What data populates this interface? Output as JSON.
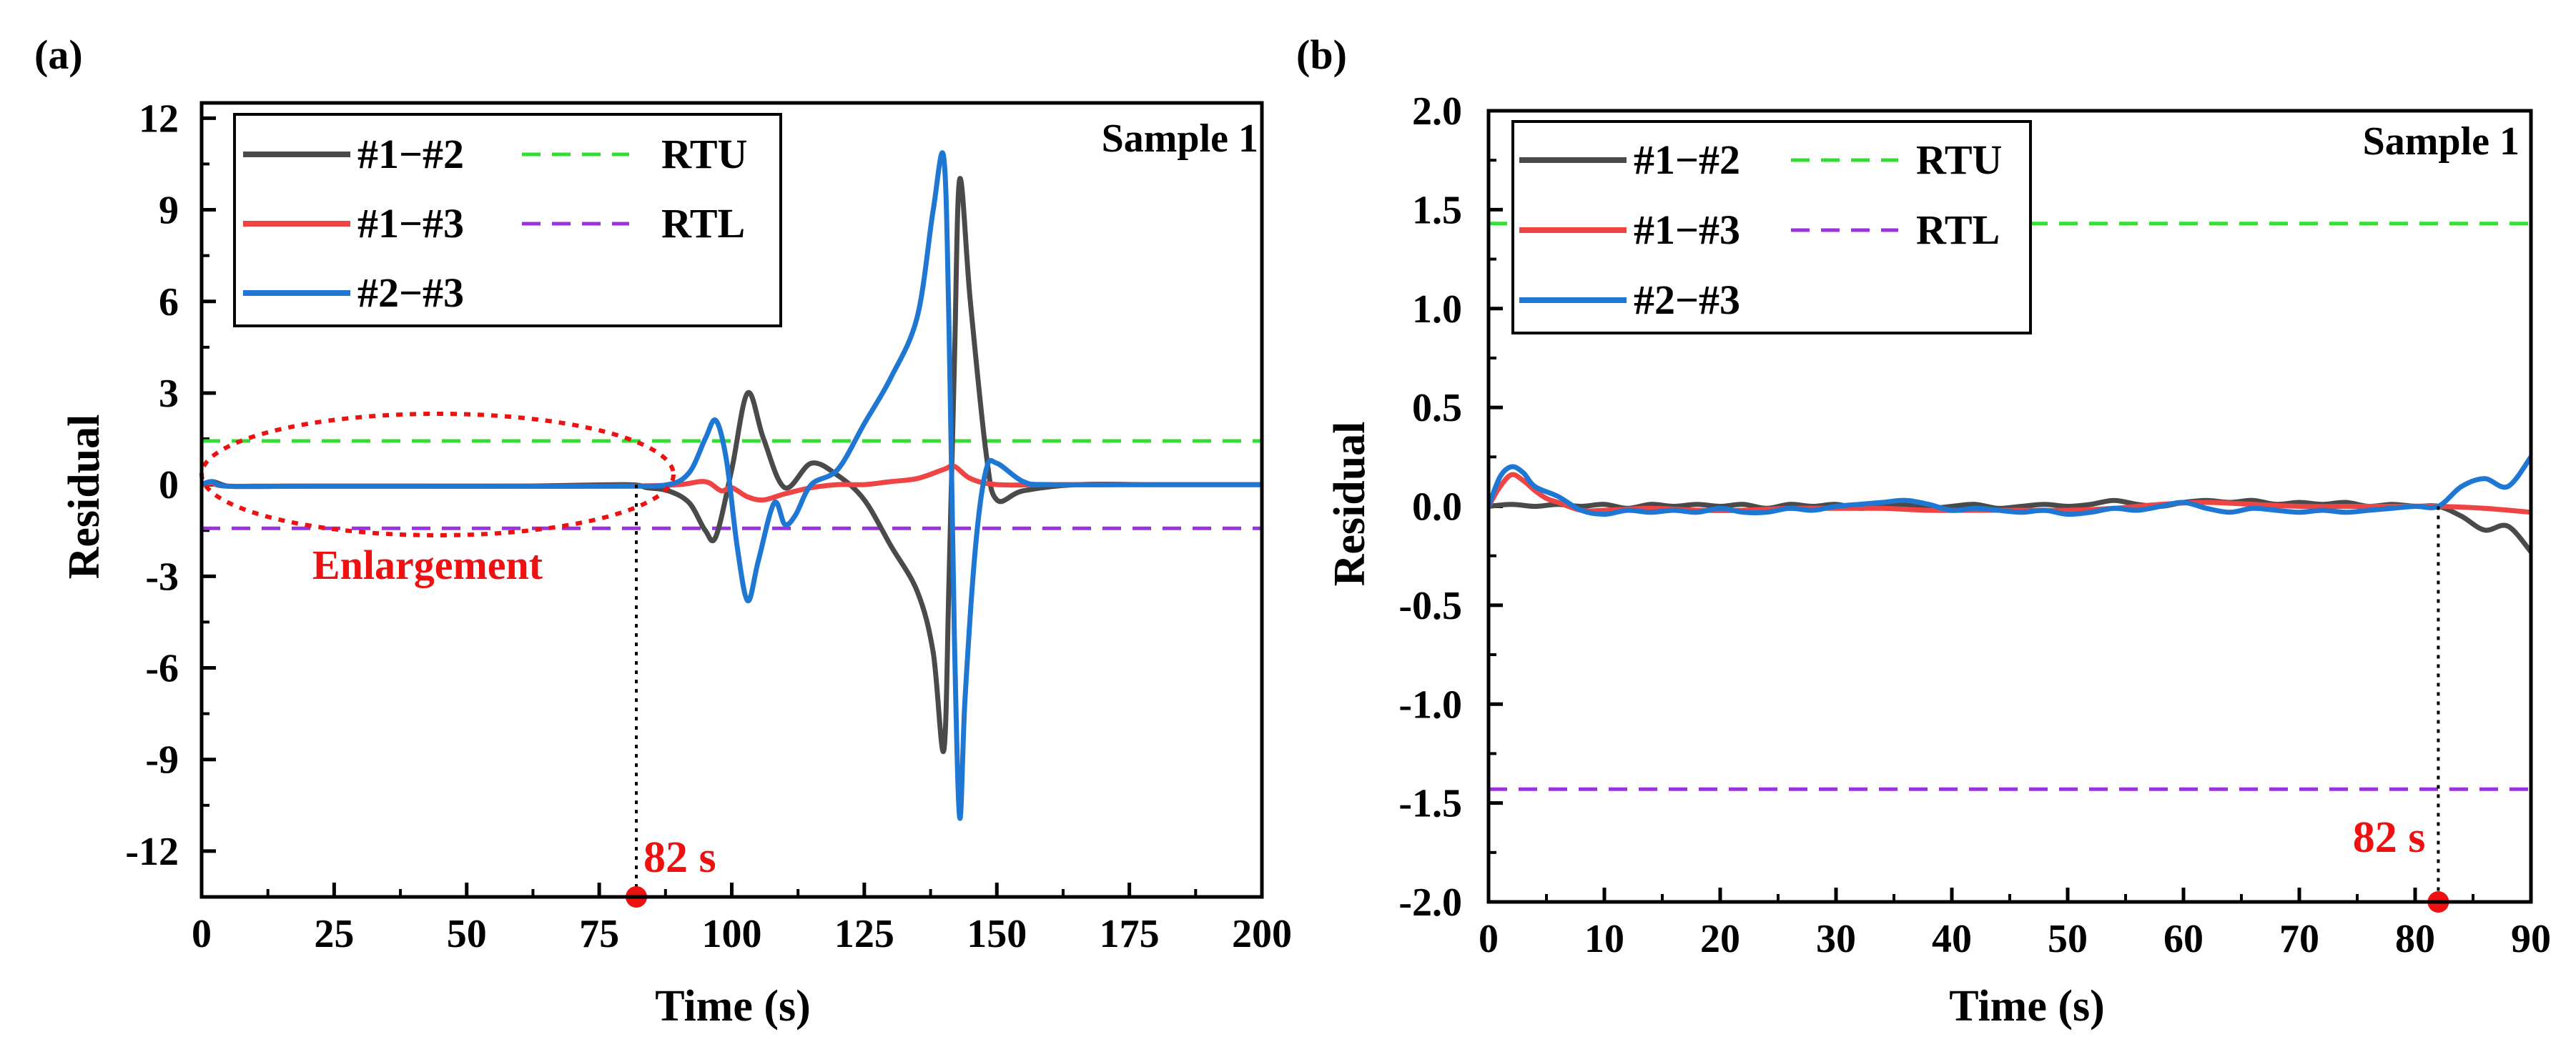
{
  "panels": [
    {
      "id": "a",
      "label": "(a)",
      "sample_label": "Sample 1",
      "annotation_text": "Enlargement",
      "marker_label": "82 s",
      "legend": [
        {
          "label": "#1−#2",
          "color": "#4a4a4a",
          "style": "solid"
        },
        {
          "label": "RTU",
          "color": "#33dd33",
          "style": "dashed"
        },
        {
          "label": "#1−#3",
          "color": "#ef4444",
          "style": "solid"
        },
        {
          "label": "RTL",
          "color": "#9a33dd",
          "style": "dashed"
        },
        {
          "label": "#2−#3",
          "color": "#1f77d4",
          "style": "solid"
        }
      ]
    },
    {
      "id": "b",
      "label": "(b)",
      "sample_label": "Sample 1",
      "marker_label": "82 s",
      "legend": [
        {
          "label": "#1−#2",
          "color": "#4a4a4a",
          "style": "solid"
        },
        {
          "label": "RTU",
          "color": "#33dd33",
          "style": "dashed"
        },
        {
          "label": "#1−#3",
          "color": "#ef4444",
          "style": "solid"
        },
        {
          "label": "RTL",
          "color": "#9a33dd",
          "style": "dashed"
        },
        {
          "label": "#2−#3",
          "color": "#1f77d4",
          "style": "solid"
        }
      ]
    }
  ],
  "chart_data": [
    {
      "type": "line",
      "xlabel": "Time (s)",
      "ylabel": "Residual",
      "xlim": [
        0,
        200
      ],
      "ylim": [
        -13.5,
        12.5
      ],
      "xticks": [
        0,
        25,
        50,
        75,
        100,
        125,
        150,
        175,
        200
      ],
      "xtick_labels": [
        "0",
        "25",
        "50",
        "75",
        "100",
        "125",
        "150",
        "175",
        "200"
      ],
      "yticks": [
        12,
        9,
        6,
        3,
        0,
        -3,
        -6,
        -9,
        -12
      ],
      "ytick_labels": [
        "12",
        "9",
        "6",
        "3",
        "0",
        "-3",
        "-6",
        "-9",
        "-12"
      ],
      "thresholds": {
        "RTU": 1.43,
        "RTL": -1.43
      },
      "marker_x": 82,
      "series": [
        {
          "name": "#1−#2",
          "color": "#4a4a4a",
          "x": [
            0,
            2,
            5,
            10,
            20,
            40,
            60,
            80,
            84,
            88,
            92,
            95,
            97,
            100,
            103,
            106,
            110,
            115,
            120,
            125,
            130,
            135,
            138,
            140,
            141,
            142,
            143,
            145,
            148,
            150,
            155,
            165,
            180,
            200
          ],
          "y": [
            0,
            0.1,
            -0.05,
            -0.05,
            -0.05,
            -0.05,
            -0.05,
            0,
            -0.1,
            -0.2,
            -0.6,
            -1.5,
            -1.7,
            0.5,
            3.0,
            1.5,
            -0.1,
            0.7,
            0.3,
            -0.5,
            -2.0,
            -3.5,
            -5.5,
            -8.7,
            -3,
            4,
            10.0,
            6,
            1,
            -0.5,
            -0.2,
            0,
            0,
            0
          ]
        },
        {
          "name": "#1−#3",
          "color": "#ef4444",
          "x": [
            0,
            2,
            5,
            20,
            40,
            60,
            80,
            90,
            95,
            98,
            100,
            103,
            106,
            110,
            115,
            120,
            125,
            130,
            135,
            140,
            142,
            145,
            150,
            160,
            180,
            200
          ],
          "y": [
            0,
            0.05,
            -0.05,
            -0.05,
            -0.05,
            -0.05,
            -0.05,
            0,
            0.1,
            -0.2,
            -0.1,
            -0.4,
            -0.5,
            -0.3,
            -0.1,
            0,
            0,
            0.1,
            0.2,
            0.5,
            0.6,
            0.2,
            0,
            0,
            0,
            0
          ]
        },
        {
          "name": "#2−#3",
          "color": "#1f77d4",
          "x": [
            0,
            2,
            5,
            20,
            40,
            60,
            80,
            88,
            92,
            95,
            97,
            99,
            101,
            103,
            105,
            108,
            110,
            112,
            115,
            120,
            125,
            130,
            135,
            138,
            140,
            141,
            142,
            143,
            144,
            146,
            148,
            150,
            155,
            160,
            180,
            200
          ],
          "y": [
            0,
            0.1,
            -0.05,
            -0.05,
            -0.05,
            -0.05,
            -0.05,
            0,
            0.4,
            1.5,
            2.1,
            0.8,
            -2.0,
            -3.8,
            -2.5,
            -0.6,
            -1.3,
            -1.0,
            0,
            0.5,
            2.0,
            3.5,
            5.5,
            9.0,
            10.7,
            5,
            -5,
            -10.9,
            -7,
            -2,
            0.5,
            0.7,
            0.1,
            0,
            0,
            0
          ]
        }
      ]
    },
    {
      "type": "line",
      "xlabel": "Time (s)",
      "ylabel": "Residual",
      "xlim": [
        0,
        90
      ],
      "ylim": [
        -2.0,
        2.0
      ],
      "xticks": [
        0,
        10,
        20,
        30,
        40,
        50,
        60,
        70,
        80,
        90
      ],
      "xtick_labels": [
        "0",
        "10",
        "20",
        "30",
        "40",
        "50",
        "60",
        "70",
        "80",
        "90"
      ],
      "yticks": [
        2.0,
        1.5,
        1.0,
        0.5,
        0.0,
        -0.5,
        -1.0,
        -1.5,
        -2.0
      ],
      "ytick_labels": [
        "2.0",
        "1.5",
        "1.0",
        "0.5",
        "0.0",
        "-0.5",
        "-1.0",
        "-1.5",
        "-2.0"
      ],
      "thresholds": {
        "RTU": 1.43,
        "RTL": -1.43
      },
      "marker_x": 82,
      "series": [
        {
          "name": "#1−#2",
          "color": "#4a4a4a",
          "x": [
            0,
            2,
            4,
            6,
            8,
            10,
            12,
            14,
            16,
            18,
            20,
            22,
            24,
            26,
            28,
            30,
            32,
            34,
            36,
            38,
            40,
            42,
            44,
            46,
            48,
            50,
            52,
            54,
            56,
            58,
            60,
            62,
            64,
            66,
            68,
            70,
            72,
            74,
            76,
            78,
            80,
            82,
            84,
            86,
            88,
            90
          ],
          "y": [
            0,
            0.01,
            0.0,
            0.01,
            0.0,
            0.01,
            -0.01,
            0.01,
            0.0,
            0.01,
            0.0,
            0.01,
            -0.01,
            0.01,
            0.0,
            0.01,
            -0.01,
            0.0,
            0.01,
            -0.01,
            0.0,
            0.01,
            -0.01,
            0.0,
            0.01,
            0.0,
            0.01,
            0.03,
            0.01,
            0.0,
            0.02,
            0.03,
            0.02,
            0.03,
            0.01,
            0.02,
            0.01,
            0.02,
            0.0,
            0.01,
            0.0,
            0.0,
            -0.05,
            -0.12,
            -0.1,
            -0.23
          ]
        },
        {
          "name": "#1−#3",
          "color": "#ef4444",
          "x": [
            0,
            1,
            2,
            3,
            4,
            5,
            6,
            8,
            10,
            14,
            18,
            22,
            26,
            30,
            34,
            38,
            42,
            46,
            50,
            54,
            58,
            62,
            66,
            70,
            74,
            78,
            82,
            86,
            90
          ],
          "y": [
            0,
            0.1,
            0.16,
            0.13,
            0.08,
            0.04,
            0.02,
            -0.02,
            -0.02,
            -0.01,
            -0.02,
            -0.02,
            -0.01,
            -0.01,
            -0.01,
            -0.02,
            -0.02,
            -0.02,
            -0.02,
            -0.01,
            0.01,
            0.02,
            0.01,
            0.0,
            0.0,
            0.0,
            0.0,
            -0.01,
            -0.03
          ]
        },
        {
          "name": "#2−#3",
          "color": "#1f77d4",
          "x": [
            0,
            1,
            2,
            3,
            4,
            6,
            8,
            10,
            12,
            14,
            16,
            18,
            20,
            22,
            24,
            26,
            28,
            30,
            32,
            34,
            36,
            38,
            40,
            42,
            44,
            46,
            48,
            50,
            52,
            54,
            56,
            58,
            60,
            62,
            64,
            66,
            68,
            70,
            72,
            74,
            76,
            78,
            80,
            82,
            84,
            86,
            88,
            90
          ],
          "y": [
            0,
            0.15,
            0.2,
            0.17,
            0.1,
            0.05,
            -0.02,
            -0.04,
            -0.02,
            -0.03,
            -0.02,
            -0.03,
            -0.01,
            -0.03,
            -0.03,
            -0.01,
            -0.02,
            0.0,
            0.01,
            0.02,
            0.03,
            0.01,
            -0.02,
            -0.01,
            -0.02,
            -0.03,
            -0.02,
            -0.04,
            -0.03,
            -0.01,
            -0.02,
            0.0,
            0.02,
            -0.01,
            -0.03,
            -0.01,
            -0.02,
            -0.03,
            -0.02,
            -0.03,
            -0.02,
            -0.01,
            0.0,
            0.0,
            0.1,
            0.14,
            0.1,
            0.25
          ]
        }
      ]
    }
  ]
}
